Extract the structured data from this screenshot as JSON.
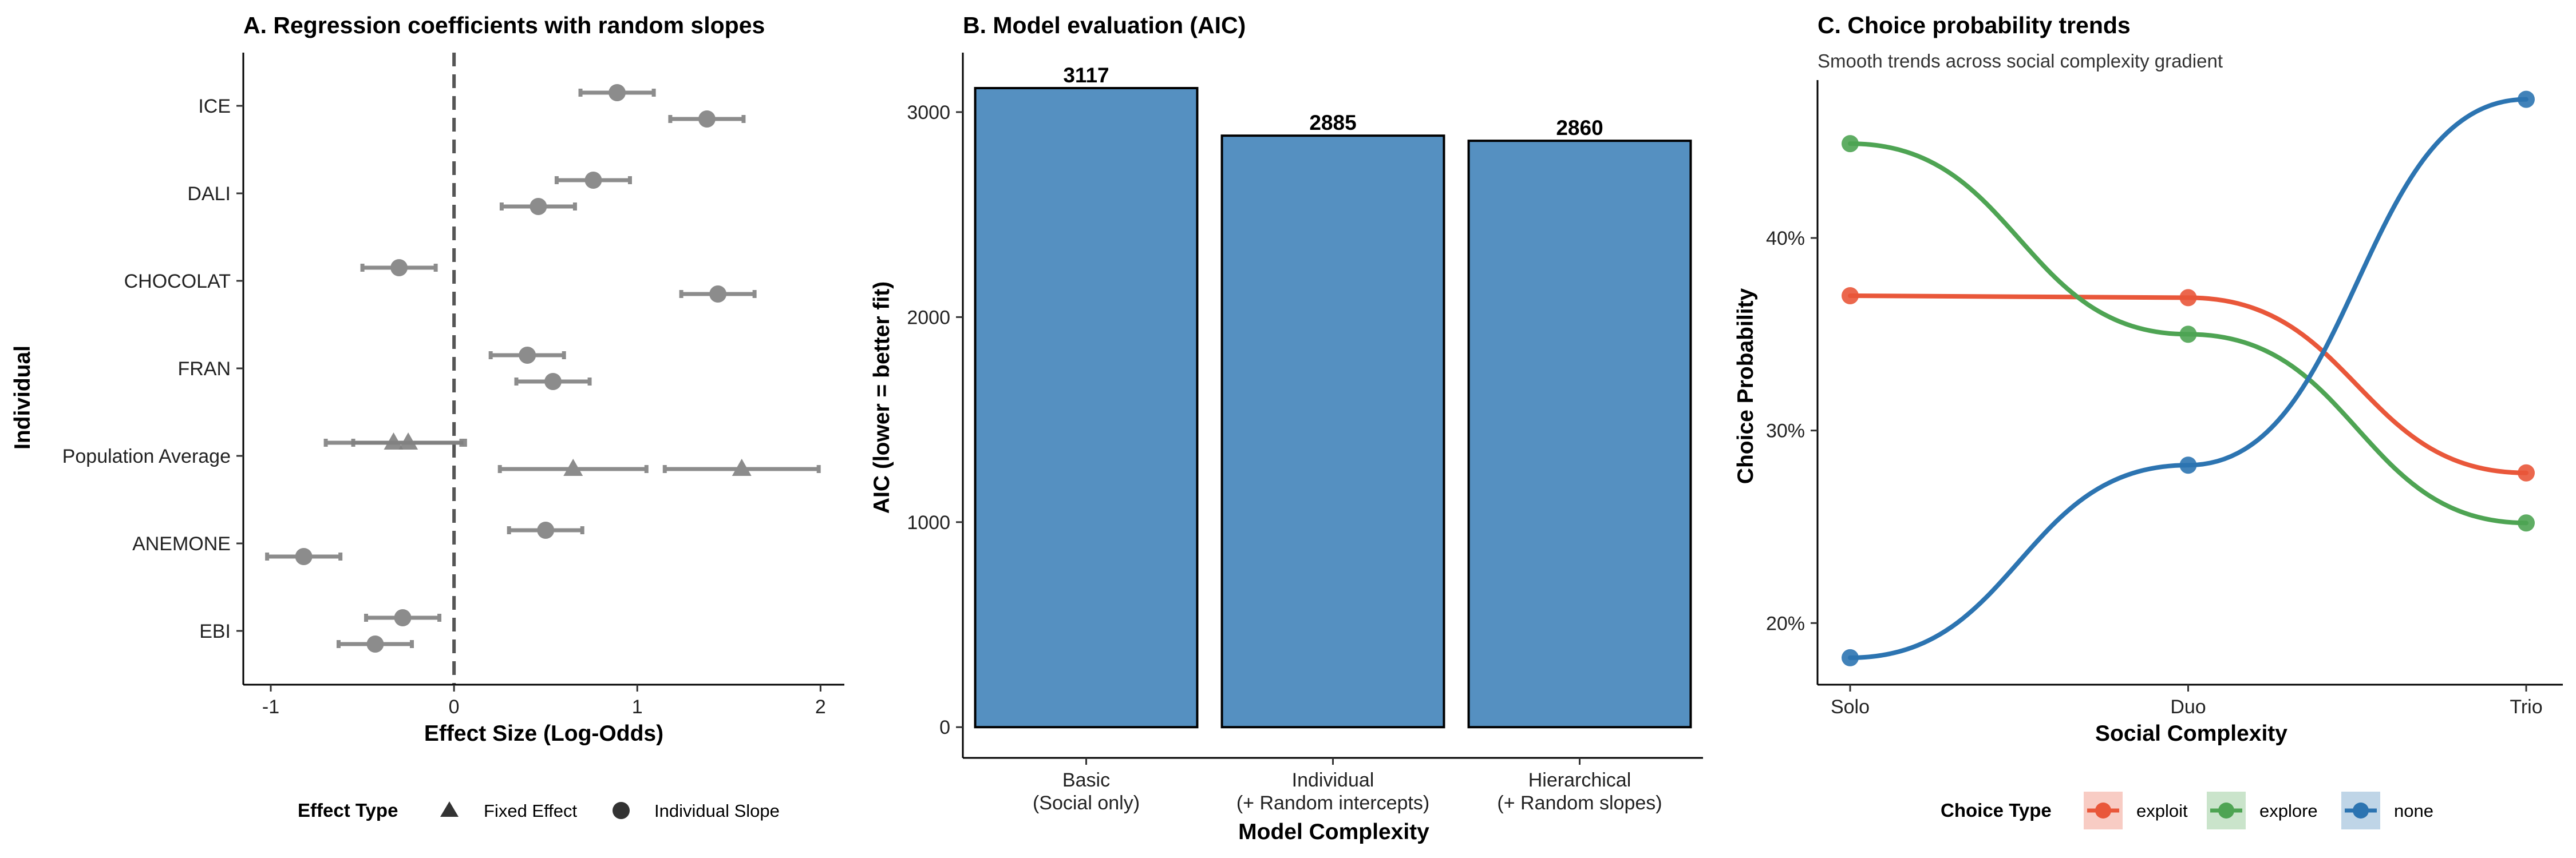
{
  "chart_data": [
    {
      "type": "dot-whisker",
      "title": "A. Regression coefficients with random slopes",
      "xlabel": "Effect Size (Log-Odds)",
      "ylabel": "Individual",
      "xlim": [
        -1.15,
        2.13
      ],
      "xticks": [
        -1,
        0,
        1,
        2
      ],
      "reference_line_x": 0,
      "categories": [
        "ICE",
        "DALI",
        "CHOCOLAT",
        "FRAN",
        "Population Average",
        "ANEMONE",
        "EBI"
      ],
      "legend": {
        "title": "Effect Type",
        "position": "bottom",
        "items": [
          {
            "label": "Fixed Effect",
            "shape": "triangle"
          },
          {
            "label": "Individual Slope",
            "shape": "circle"
          }
        ]
      },
      "point_color": "#808080",
      "points": [
        {
          "category": "ICE",
          "offset": 1,
          "estimate": 1.38,
          "lower": 1.18,
          "upper": 1.58,
          "type": "Individual Slope"
        },
        {
          "category": "ICE",
          "offset": -1,
          "estimate": 0.89,
          "lower": 0.69,
          "upper": 1.09,
          "type": "Individual Slope"
        },
        {
          "category": "DALI",
          "offset": 1,
          "estimate": 0.46,
          "lower": 0.26,
          "upper": 0.66,
          "type": "Individual Slope"
        },
        {
          "category": "DALI",
          "offset": -1,
          "estimate": 0.76,
          "lower": 0.56,
          "upper": 0.96,
          "type": "Individual Slope"
        },
        {
          "category": "CHOCOLAT",
          "offset": 1,
          "estimate": 1.44,
          "lower": 1.24,
          "upper": 1.64,
          "type": "Individual Slope"
        },
        {
          "category": "CHOCOLAT",
          "offset": -1,
          "estimate": -0.3,
          "lower": -0.5,
          "upper": -0.1,
          "type": "Individual Slope"
        },
        {
          "category": "FRAN",
          "offset": 1,
          "estimate": 0.54,
          "lower": 0.34,
          "upper": 0.74,
          "type": "Individual Slope"
        },
        {
          "category": "FRAN",
          "offset": -1,
          "estimate": 0.4,
          "lower": 0.2,
          "upper": 0.6,
          "type": "Individual Slope"
        },
        {
          "category": "Population Average",
          "offset": 1,
          "estimate": 0.65,
          "lower": 0.25,
          "upper": 1.05,
          "type": "Fixed Effect"
        },
        {
          "category": "Population Average",
          "offset": 1,
          "estimate": 1.57,
          "lower": 1.15,
          "upper": 1.99,
          "type": "Fixed Effect"
        },
        {
          "category": "Population Average",
          "offset": -1,
          "estimate": -0.33,
          "lower": -0.7,
          "upper": 0.04,
          "type": "Fixed Effect"
        },
        {
          "category": "Population Average",
          "offset": -1,
          "estimate": -0.25,
          "lower": -0.55,
          "upper": 0.06,
          "type": "Fixed Effect"
        },
        {
          "category": "ANEMONE",
          "offset": 1,
          "estimate": -0.82,
          "lower": -1.02,
          "upper": -0.62,
          "type": "Individual Slope"
        },
        {
          "category": "ANEMONE",
          "offset": -1,
          "estimate": 0.5,
          "lower": 0.3,
          "upper": 0.7,
          "type": "Individual Slope"
        },
        {
          "category": "EBI",
          "offset": 1,
          "estimate": -0.43,
          "lower": -0.63,
          "upper": -0.23,
          "type": "Individual Slope"
        },
        {
          "category": "EBI",
          "offset": -1,
          "estimate": -0.28,
          "lower": -0.48,
          "upper": -0.08,
          "type": "Individual Slope"
        }
      ]
    },
    {
      "type": "bar",
      "title": "B. Model evaluation (AIC)",
      "xlabel": "Model Complexity",
      "ylabel": "AIC (lower = better fit)",
      "categories": [
        "Basic\n(Social only)",
        "Individual\n(+ Random intercepts)",
        "Hierarchical\n(+ Random slopes)"
      ],
      "values": [
        3117,
        2885,
        2860
      ],
      "data_labels": [
        "3117",
        "2885",
        "2860"
      ],
      "ylim": [
        -150,
        3290
      ],
      "yticks": [
        0,
        1000,
        2000,
        3000
      ],
      "bar_color": "#5590c1"
    },
    {
      "type": "line",
      "title": "C. Choice probability trends",
      "subtitle": "Smooth trends across social complexity gradient",
      "xlabel": "Social Complexity",
      "ylabel": "Choice Probability",
      "categories": [
        "Solo",
        "Duo",
        "Trio"
      ],
      "ylim": [
        0.168,
        0.482
      ],
      "yticks": [
        0.2,
        0.3,
        0.4
      ],
      "ytick_labels": [
        "20%",
        "30%",
        "40%"
      ],
      "legend": {
        "title": "Choice Type",
        "position": "bottom"
      },
      "series": [
        {
          "name": "exploit",
          "color": "#e9573a",
          "values": [
            0.37,
            0.369,
            0.278
          ]
        },
        {
          "name": "explore",
          "color": "#4ea453",
          "values": [
            0.449,
            0.35,
            0.252
          ]
        },
        {
          "name": "none",
          "color": "#2c74b1",
          "values": [
            0.182,
            0.282,
            0.472
          ]
        }
      ]
    }
  ]
}
